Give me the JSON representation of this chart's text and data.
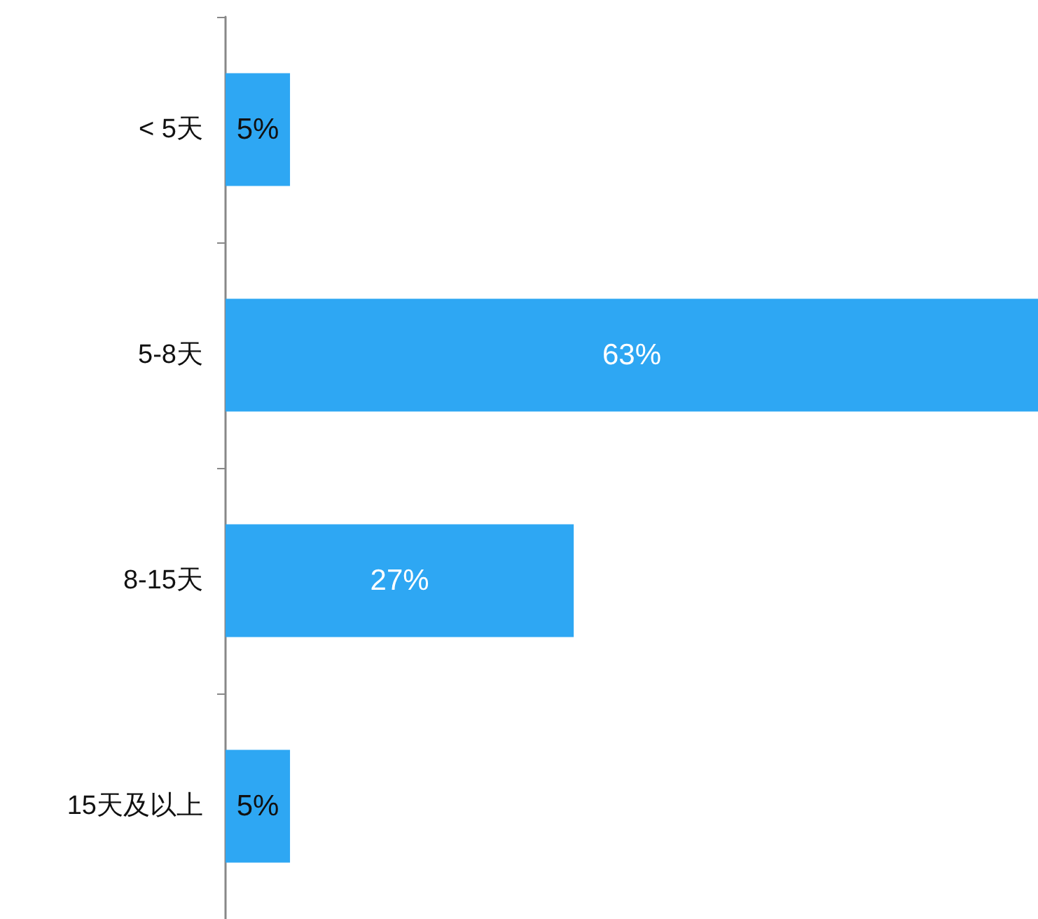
{
  "chart_data": {
    "type": "bar",
    "orientation": "horizontal",
    "categories": [
      "< 5天",
      "5-8天",
      "8-15天",
      "15天及以上"
    ],
    "values": [
      5,
      63,
      27,
      5
    ],
    "color": "#2ea7f3",
    "value_labels": [
      "5%",
      "63%",
      "27%",
      "5%"
    ]
  }
}
